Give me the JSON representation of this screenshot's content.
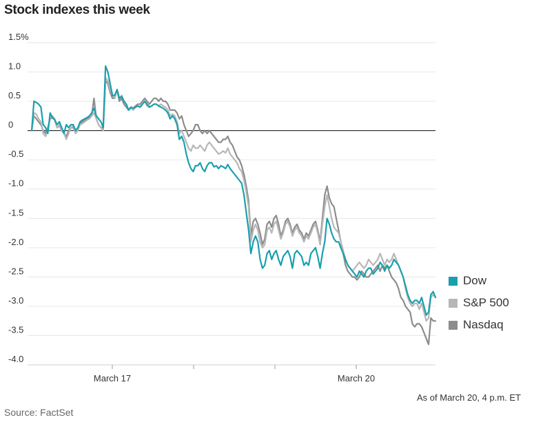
{
  "chart_data": {
    "type": "line",
    "title": "Stock indexes this week",
    "ylim": [
      -4.0,
      1.5
    ],
    "y_ticks": [
      1.5,
      1.0,
      0.5,
      0,
      -0.5,
      -1.0,
      -1.5,
      -2.0,
      -2.5,
      -3.0,
      -3.5,
      -4.0
    ],
    "y_tick_labels": [
      "1.5%",
      "1.0",
      "0.5",
      "0",
      "-0.5",
      "-1.0",
      "-1.5",
      "-2.0",
      "-2.5",
      "-3.0",
      "-3.5",
      "-4.0"
    ],
    "x_tick_labels": [
      {
        "label": "March 17",
        "at": "March 17"
      },
      {
        "label": "March 20",
        "at": "March 20"
      }
    ],
    "zero_line": true,
    "grid": true,
    "legend_position": "right",
    "series": [
      {
        "name": "Dow",
        "color": "#1a9fae",
        "values": [
          0,
          0.5,
          0.48,
          0.45,
          0.4,
          0.1,
          0.05,
          -0.05,
          0.3,
          0.22,
          0.18,
          0.1,
          0.15,
          0.05,
          -0.05,
          0.1,
          0.05,
          0.1,
          0.1,
          0.0,
          0.05,
          0.15,
          0.18,
          0.2,
          0.22,
          0.25,
          0.3,
          0.38,
          0.25,
          0.2,
          0.15,
          0.05,
          1.1,
          1.0,
          0.8,
          0.6,
          0.6,
          0.7,
          0.55,
          0.58,
          0.5,
          0.45,
          0.35,
          0.4,
          0.38,
          0.4,
          0.42,
          0.4,
          0.45,
          0.5,
          0.45,
          0.4,
          0.42,
          0.45,
          0.45,
          0.42,
          0.4,
          0.38,
          0.35,
          0.3,
          0.2,
          0.25,
          0.2,
          0.1,
          -0.15,
          -0.1,
          -0.2,
          -0.4,
          -0.55,
          -0.65,
          -0.7,
          -0.6,
          -0.6,
          -0.55,
          -0.65,
          -0.7,
          -0.6,
          -0.55,
          -0.55,
          -0.62,
          -0.6,
          -0.65,
          -0.6,
          -0.62,
          -0.65,
          -0.58,
          -0.65,
          -0.7,
          -0.75,
          -0.8,
          -0.85,
          -0.9,
          -1.1,
          -1.4,
          -1.7,
          -2.1,
          -1.9,
          -1.8,
          -1.9,
          -2.2,
          -2.35,
          -2.3,
          -2.1,
          -2.05,
          -2.2,
          -2.1,
          -2.05,
          -2.2,
          -2.3,
          -2.15,
          -2.1,
          -2.05,
          -2.15,
          -2.35,
          -2.1,
          -2.05,
          -2.1,
          -2.15,
          -2.3,
          -2.25,
          -2.3,
          -2.1,
          -2.05,
          -2.0,
          -2.15,
          -2.35,
          -2.1,
          -1.9,
          -1.5,
          -1.6,
          -1.75,
          -1.85,
          -1.9,
          -1.9,
          -2.0,
          -2.1,
          -2.2,
          -2.3,
          -2.35,
          -2.4,
          -2.45,
          -2.5,
          -2.4,
          -2.45,
          -2.5,
          -2.4,
          -2.35,
          -2.35,
          -2.45,
          -2.4,
          -2.35,
          -2.25,
          -2.3,
          -2.4,
          -2.3,
          -2.35,
          -2.3,
          -2.2,
          -2.25,
          -2.3,
          -2.4,
          -2.5,
          -2.65,
          -2.8,
          -2.9,
          -2.95,
          -2.9,
          -2.9,
          -2.95,
          -2.85,
          -3.0,
          -3.15,
          -3.1,
          -2.8,
          -2.75,
          -2.85
        ]
      },
      {
        "name": "S&P 500",
        "color": "#b7b7b7",
        "values": [
          0,
          0.3,
          0.28,
          0.2,
          0.15,
          -0.05,
          -0.1,
          0.0,
          0.22,
          0.25,
          0.2,
          0.05,
          0.1,
          0.0,
          -0.05,
          -0.15,
          -0.05,
          0.05,
          0.08,
          -0.05,
          0.0,
          0.1,
          0.12,
          0.15,
          0.18,
          0.2,
          0.25,
          0.3,
          0.2,
          0.1,
          0.05,
          0.0,
          0.9,
          0.85,
          0.7,
          0.6,
          0.55,
          0.7,
          0.55,
          0.6,
          0.5,
          0.45,
          0.35,
          0.38,
          0.35,
          0.4,
          0.42,
          0.4,
          0.45,
          0.5,
          0.42,
          0.4,
          0.42,
          0.45,
          0.45,
          0.42,
          0.45,
          0.42,
          0.4,
          0.35,
          0.25,
          0.28,
          0.25,
          0.15,
          -0.05,
          0.0,
          -0.1,
          -0.2,
          -0.3,
          -0.35,
          -0.25,
          -0.3,
          -0.3,
          -0.25,
          -0.3,
          -0.35,
          -0.25,
          -0.2,
          -0.25,
          -0.3,
          -0.35,
          -0.4,
          -0.38,
          -0.35,
          -0.38,
          -0.3,
          -0.4,
          -0.45,
          -0.5,
          -0.55,
          -0.65,
          -0.7,
          -0.85,
          -1.05,
          -1.3,
          -1.9,
          -1.7,
          -1.6,
          -1.7,
          -1.9,
          -2.0,
          -1.95,
          -1.7,
          -1.65,
          -1.75,
          -1.6,
          -1.55,
          -1.7,
          -1.85,
          -1.75,
          -1.6,
          -1.55,
          -1.65,
          -1.8,
          -1.7,
          -1.65,
          -1.75,
          -1.8,
          -1.9,
          -1.8,
          -1.85,
          -1.75,
          -1.65,
          -1.6,
          -1.75,
          -1.95,
          -1.6,
          -1.3,
          -1.1,
          -1.3,
          -1.5,
          -1.65,
          -1.7,
          -1.75,
          -1.9,
          -2.05,
          -2.2,
          -2.3,
          -2.35,
          -2.4,
          -2.35,
          -2.3,
          -2.25,
          -2.3,
          -2.35,
          -2.3,
          -2.2,
          -2.25,
          -2.3,
          -2.25,
          -2.2,
          -2.1,
          -2.2,
          -2.3,
          -2.2,
          -2.25,
          -2.2,
          -2.1,
          -2.2,
          -2.3,
          -2.4,
          -2.5,
          -2.7,
          -2.85,
          -2.95,
          -3.0,
          -2.95,
          -2.95,
          -3.05,
          -2.95,
          -3.1,
          -3.25,
          -3.2,
          -2.85,
          -2.8,
          -2.85
        ]
      },
      {
        "name": "Nasdaq",
        "color": "#8c8c8c",
        "values": [
          0,
          0.25,
          0.2,
          0.15,
          0.1,
          0.0,
          -0.05,
          0.05,
          0.2,
          0.22,
          0.18,
          0.05,
          0.08,
          0.0,
          -0.05,
          -0.1,
          0.0,
          0.05,
          0.05,
          -0.02,
          0.05,
          0.12,
          0.15,
          0.18,
          0.2,
          0.22,
          0.25,
          0.55,
          0.2,
          0.1,
          0.05,
          0.05,
          0.85,
          0.8,
          0.65,
          0.55,
          0.55,
          0.7,
          0.5,
          0.55,
          0.45,
          0.4,
          0.35,
          0.4,
          0.38,
          0.42,
          0.45,
          0.45,
          0.5,
          0.55,
          0.5,
          0.45,
          0.5,
          0.55,
          0.55,
          0.5,
          0.55,
          0.5,
          0.5,
          0.45,
          0.35,
          0.35,
          0.35,
          0.3,
          0.2,
          0.25,
          0.1,
          0.0,
          -0.1,
          -0.05,
          0.0,
          0.1,
          0.1,
          0.0,
          -0.05,
          0.0,
          -0.05,
          0.0,
          -0.05,
          -0.1,
          -0.15,
          -0.2,
          -0.2,
          -0.15,
          -0.15,
          -0.1,
          -0.2,
          -0.25,
          -0.35,
          -0.45,
          -0.5,
          -0.6,
          -0.75,
          -0.95,
          -1.2,
          -1.8,
          -1.55,
          -1.5,
          -1.6,
          -1.75,
          -1.95,
          -1.85,
          -1.6,
          -1.55,
          -1.65,
          -1.5,
          -1.45,
          -1.6,
          -1.8,
          -1.7,
          -1.55,
          -1.5,
          -1.6,
          -1.75,
          -1.65,
          -1.6,
          -1.7,
          -1.75,
          -1.85,
          -1.75,
          -1.8,
          -1.7,
          -1.6,
          -1.55,
          -1.7,
          -1.9,
          -1.5,
          -1.1,
          -0.95,
          -1.15,
          -1.25,
          -1.3,
          -1.5,
          -1.7,
          -1.9,
          -2.1,
          -2.3,
          -2.4,
          -2.45,
          -2.5,
          -2.5,
          -2.55,
          -2.5,
          -2.4,
          -2.45,
          -2.5,
          -2.5,
          -2.45,
          -2.4,
          -2.35,
          -2.3,
          -2.4,
          -2.3,
          -2.35,
          -2.3,
          -2.4,
          -2.5,
          -2.55,
          -2.6,
          -2.7,
          -2.85,
          -2.9,
          -3.0,
          -3.05,
          -3.1,
          -3.3,
          -3.35,
          -3.3,
          -3.3,
          -3.35,
          -3.45,
          -3.55,
          -3.65,
          -3.2,
          -3.25,
          -3.25
        ]
      }
    ]
  },
  "legend": {
    "items": [
      {
        "label": "Dow",
        "color": "#1a9fae"
      },
      {
        "label": "S&P 500",
        "color": "#b7b7b7"
      },
      {
        "label": "Nasdaq",
        "color": "#8c8c8c"
      }
    ]
  },
  "note": "As of March 20, 4 p.m. ET",
  "source": "Source: FactSet"
}
